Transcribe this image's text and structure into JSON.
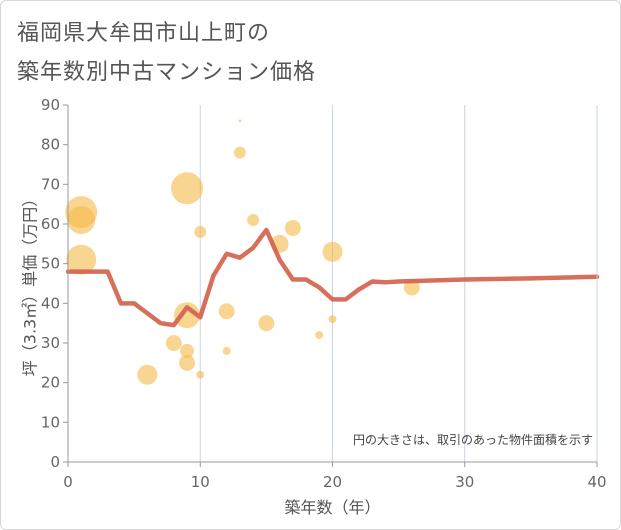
{
  "title": {
    "line1": "福岡県大牟田市山上町の",
    "line2": "築年数別中古マンション価格"
  },
  "colors": {
    "bubble": "#f5b94a",
    "line": "#d2604a",
    "grid": "#c9d4e4"
  },
  "chart_data": {
    "type": "scatter",
    "title": "福岡県大牟田市山上町の築年数別中古マンション価格",
    "xlabel": "築年数（年）",
    "ylabel": "坪（3.3㎡）単価（万円）",
    "xlim": [
      0,
      40
    ],
    "ylim": [
      0,
      90
    ],
    "xticks": [
      0,
      10,
      20,
      30,
      40
    ],
    "yticks": [
      0,
      10,
      20,
      30,
      40,
      50,
      60,
      70,
      80,
      90
    ],
    "note": "円の大きさは、取引のあった物件面積を示す",
    "bubbles": [
      {
        "x": 1,
        "y": 63,
        "r": 16
      },
      {
        "x": 1,
        "y": 61,
        "r": 14
      },
      {
        "x": 1,
        "y": 51,
        "r": 15
      },
      {
        "x": 6,
        "y": 22,
        "r": 10
      },
      {
        "x": 8,
        "y": 30,
        "r": 8
      },
      {
        "x": 9,
        "y": 69,
        "r": 16
      },
      {
        "x": 9,
        "y": 37,
        "r": 13
      },
      {
        "x": 9,
        "y": 28,
        "r": 7
      },
      {
        "x": 9,
        "y": 25,
        "r": 8
      },
      {
        "x": 10,
        "y": 58,
        "r": 6
      },
      {
        "x": 10,
        "y": 22,
        "r": 4
      },
      {
        "x": 12,
        "y": 38,
        "r": 8
      },
      {
        "x": 12,
        "y": 28,
        "r": 4
      },
      {
        "x": 13,
        "y": 86,
        "r": 1.5
      },
      {
        "x": 13,
        "y": 78,
        "r": 6
      },
      {
        "x": 14,
        "y": 61,
        "r": 6
      },
      {
        "x": 15,
        "y": 35,
        "r": 8
      },
      {
        "x": 16,
        "y": 55,
        "r": 9
      },
      {
        "x": 17,
        "y": 59,
        "r": 8
      },
      {
        "x": 19,
        "y": 32,
        "r": 4
      },
      {
        "x": 20,
        "y": 53,
        "r": 10
      },
      {
        "x": 20,
        "y": 36,
        "r": 4
      },
      {
        "x": 26,
        "y": 44,
        "r": 8
      }
    ],
    "trend_line": {
      "x": [
        0,
        1,
        2,
        3,
        4,
        5,
        6,
        7,
        8,
        9,
        10,
        11,
        12,
        13,
        14,
        15,
        16,
        17,
        18,
        19,
        20,
        21,
        22,
        23,
        24,
        25,
        30,
        35,
        40
      ],
      "y": [
        48,
        48,
        48,
        48,
        40,
        40,
        37.5,
        35,
        34.5,
        39,
        36.5,
        47,
        52.5,
        51.5,
        54,
        58.5,
        51,
        46,
        46,
        44,
        41,
        41,
        43.5,
        45.5,
        45.3,
        45.5,
        46,
        46.3,
        46.7
      ]
    }
  }
}
